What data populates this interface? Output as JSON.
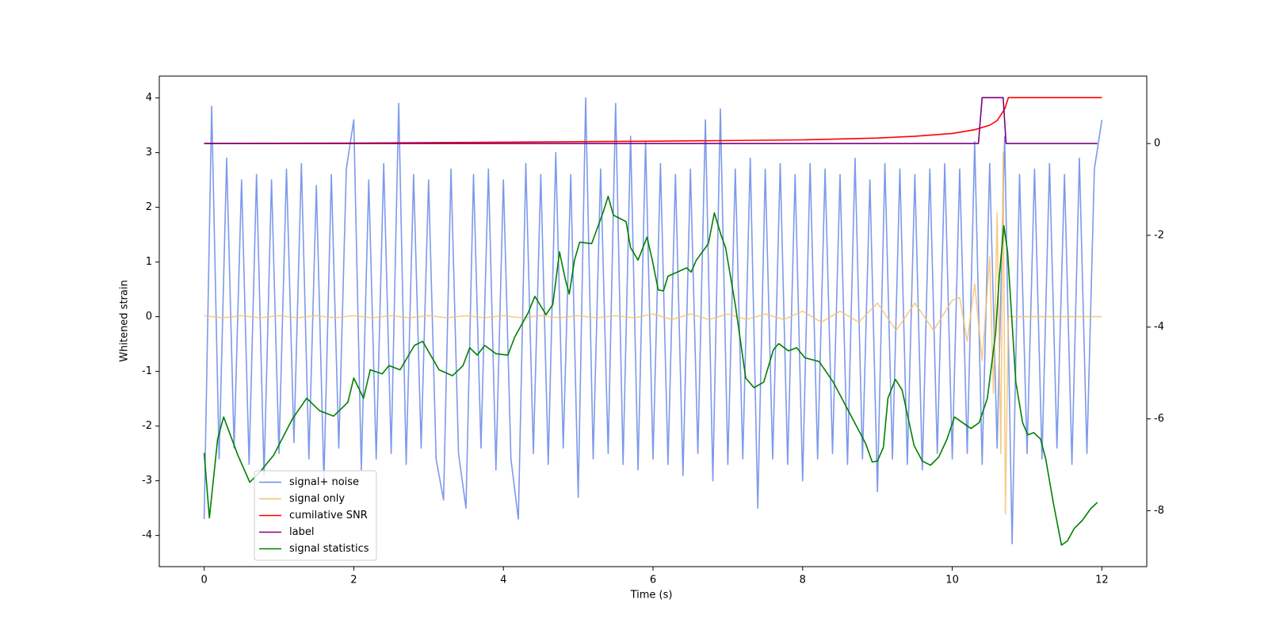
{
  "chart_data": {
    "type": "line",
    "xlabel": "Time (s)",
    "ylabel": "Whitened strain",
    "xlim": [
      -0.6,
      12.6
    ],
    "xticks": [
      0,
      2,
      4,
      6,
      8,
      10,
      12
    ],
    "ylim": [
      -4.57,
      4.4
    ],
    "yticks": [
      -4,
      -3,
      -2,
      -1,
      0,
      1,
      2,
      3,
      4
    ],
    "y2lim": [
      -9.22,
      1.47
    ],
    "y2ticks": [
      -8,
      -6,
      -4,
      -2,
      0
    ],
    "legend": "lower left",
    "series": [
      {
        "name": "signal+ noise",
        "color": "#6f8ee8",
        "axis": "y",
        "x": [
          0,
          0.1,
          0.2,
          0.3,
          0.4,
          0.5,
          0.6,
          0.7,
          0.8,
          0.9,
          1,
          1.1,
          1.2,
          1.3,
          1.4,
          1.5,
          1.6,
          1.7,
          1.8,
          1.9,
          2,
          2.1,
          2.2,
          2.3,
          2.4,
          2.5,
          2.6,
          2.7,
          2.8,
          2.9,
          3,
          3.1,
          3.2,
          3.3,
          3.4,
          3.5,
          3.6,
          3.7,
          3.8,
          3.9,
          4,
          4.1,
          4.2,
          4.3,
          4.4,
          4.5,
          4.6,
          4.7,
          4.8,
          4.9,
          5,
          5.1,
          5.2,
          5.3,
          5.4,
          5.5,
          5.6,
          5.7,
          5.8,
          5.9,
          6,
          6.1,
          6.2,
          6.3,
          6.4,
          6.5,
          6.6,
          6.7,
          6.8,
          6.9,
          7,
          7.1,
          7.2,
          7.3,
          7.4,
          7.5,
          7.6,
          7.7,
          7.8,
          7.9,
          8,
          8.1,
          8.2,
          8.3,
          8.4,
          8.5,
          8.6,
          8.7,
          8.8,
          8.9,
          9,
          9.1,
          9.2,
          9.3,
          9.4,
          9.5,
          9.6,
          9.7,
          9.8,
          9.9,
          10,
          10.1,
          10.2,
          10.3,
          10.4,
          10.5,
          10.6,
          10.7,
          10.8,
          10.9,
          11,
          11.1,
          11.2,
          11.3,
          11.4,
          11.5,
          11.6,
          11.7,
          11.8,
          11.9,
          12
        ],
        "values": [
          -3.7,
          3.85,
          -2.6,
          2.9,
          -2.4,
          2.5,
          -2.7,
          2.6,
          -2.9,
          2.5,
          -2.5,
          2.7,
          -2.3,
          2.8,
          -2.6,
          2.4,
          -3.0,
          2.6,
          -2.4,
          2.7,
          3.6,
          -2.8,
          2.5,
          -2.6,
          2.8,
          -2.5,
          3.9,
          -2.7,
          2.6,
          -2.4,
          2.5,
          -2.6,
          -3.35,
          2.7,
          -2.5,
          -3.5,
          2.6,
          -2.4,
          2.7,
          -2.8,
          2.5,
          -2.6,
          -3.7,
          2.8,
          -2.5,
          2.6,
          -2.7,
          3.0,
          -2.4,
          2.6,
          -3.3,
          4.0,
          -2.6,
          2.7,
          -2.5,
          3.9,
          -2.7,
          3.3,
          -2.8,
          3.2,
          -2.6,
          2.8,
          -2.7,
          2.6,
          -2.9,
          2.7,
          -2.5,
          3.6,
          -3.0,
          3.8,
          -2.7,
          2.7,
          -2.6,
          2.9,
          -3.5,
          2.7,
          -2.6,
          2.8,
          -2.7,
          2.6,
          -3.0,
          2.8,
          -2.6,
          2.7,
          -2.5,
          2.6,
          -2.7,
          2.9,
          -2.6,
          2.5,
          -3.2,
          2.8,
          -2.6,
          2.7,
          -2.7,
          2.6,
          -2.8,
          2.7,
          -2.5,
          2.8,
          -2.6,
          2.7,
          -2.5,
          3.2,
          -2.7,
          2.8,
          -2.4,
          3.3,
          -4.15,
          2.6,
          -2.5,
          2.7,
          -2.6,
          2.8,
          -2.4,
          2.6,
          -2.7,
          2.9,
          -2.5,
          2.7,
          3.6
        ]
      },
      {
        "name": "signal only",
        "color": "#f5c06a",
        "axis": "y",
        "x": [
          0,
          0.25,
          0.5,
          0.75,
          1,
          1.25,
          1.5,
          1.75,
          2,
          2.25,
          2.5,
          2.75,
          3,
          3.25,
          3.5,
          3.75,
          4,
          4.25,
          4.5,
          4.75,
          5,
          5.25,
          5.5,
          5.75,
          6,
          6.25,
          6.5,
          6.75,
          7,
          7.25,
          7.5,
          7.75,
          8,
          8.25,
          8.5,
          8.75,
          9,
          9.25,
          9.5,
          9.75,
          10,
          10.1,
          10.2,
          10.3,
          10.4,
          10.5,
          10.55,
          10.6,
          10.65,
          10.68,
          10.71,
          10.75,
          12
        ],
        "values": [
          0.02,
          -0.02,
          0.02,
          -0.02,
          0.02,
          -0.02,
          0.02,
          -0.02,
          0.02,
          -0.02,
          0.02,
          -0.02,
          0.02,
          -0.02,
          0.02,
          -0.02,
          0.02,
          -0.02,
          0.02,
          -0.02,
          0.02,
          -0.02,
          0.02,
          -0.02,
          0.05,
          -0.05,
          0.05,
          -0.05,
          0.05,
          -0.05,
          0.05,
          -0.05,
          0.1,
          -0.1,
          0.1,
          -0.1,
          0.25,
          -0.25,
          0.25,
          -0.25,
          0.3,
          0.35,
          -0.45,
          0.6,
          -0.8,
          1.1,
          -1.4,
          1.9,
          -2.5,
          3.0,
          -3.6,
          0,
          0
        ]
      },
      {
        "name": "cumilative SNR",
        "color": "#ff0000",
        "axis": "y2",
        "x": [
          0,
          2,
          4,
          6,
          8,
          9,
          9.5,
          10,
          10.3,
          10.5,
          10.6,
          10.7,
          10.75,
          12
        ],
        "values": [
          0,
          0.01,
          0.03,
          0.05,
          0.08,
          0.12,
          0.16,
          0.22,
          0.3,
          0.4,
          0.5,
          0.75,
          1,
          1
        ]
      },
      {
        "name": "label",
        "color": "#800080",
        "axis": "y2",
        "x": [
          0,
          10.35,
          10.4,
          10.68,
          10.72,
          11.94
        ],
        "values": [
          0,
          0,
          1,
          1,
          0,
          0
        ]
      },
      {
        "name": "signal statistics",
        "color": "#008000",
        "axis": "y2",
        "x": [
          0,
          0.07,
          0.18,
          0.26,
          0.45,
          0.61,
          0.75,
          0.93,
          1.18,
          1.37,
          1.54,
          1.73,
          1.92,
          2.0,
          2.13,
          2.22,
          2.38,
          2.47,
          2.62,
          2.81,
          2.92,
          3.14,
          3.32,
          3.46,
          3.55,
          3.65,
          3.75,
          3.9,
          4.06,
          4.15,
          4.33,
          4.42,
          4.57,
          4.66,
          4.75,
          4.83,
          4.88,
          4.95,
          5.02,
          5.18,
          5.33,
          5.4,
          5.47,
          5.64,
          5.7,
          5.8,
          5.92,
          5.99,
          6.07,
          6.14,
          6.2,
          6.45,
          6.51,
          6.58,
          6.74,
          6.82,
          6.91,
          6.97,
          7.1,
          7.24,
          7.35,
          7.48,
          7.61,
          7.68,
          7.81,
          7.92,
          8.03,
          8.22,
          8.41,
          8.62,
          8.84,
          8.93,
          9.0,
          9.08,
          9.14,
          9.24,
          9.33,
          9.49,
          9.6,
          9.71,
          9.82,
          9.93,
          10.03,
          10.25,
          10.36,
          10.47,
          10.58,
          10.63,
          10.69,
          10.74,
          10.85,
          10.94,
          11.01,
          11.09,
          11.18,
          11.25,
          11.35,
          11.46,
          11.54,
          11.63,
          11.74,
          11.85,
          11.94
        ],
        "values": [
          -6.74,
          -8.16,
          -6.44,
          -5.96,
          -6.79,
          -7.38,
          -7.15,
          -6.79,
          -6.0,
          -5.55,
          -5.82,
          -5.94,
          -5.64,
          -5.11,
          -5.55,
          -4.93,
          -5.02,
          -4.84,
          -4.93,
          -4.4,
          -4.31,
          -4.93,
          -5.06,
          -4.84,
          -4.45,
          -4.61,
          -4.4,
          -4.58,
          -4.61,
          -4.22,
          -3.69,
          -3.33,
          -3.73,
          -3.51,
          -2.36,
          -2.98,
          -3.28,
          -2.54,
          -2.15,
          -2.18,
          -1.51,
          -1.15,
          -1.56,
          -1.7,
          -2.27,
          -2.54,
          -2.04,
          -2.54,
          -3.19,
          -3.21,
          -2.89,
          -2.71,
          -2.8,
          -2.54,
          -2.18,
          -1.51,
          -2.0,
          -2.27,
          -3.51,
          -5.11,
          -5.32,
          -5.2,
          -4.49,
          -4.36,
          -4.52,
          -4.45,
          -4.67,
          -4.75,
          -5.2,
          -5.85,
          -6.53,
          -6.94,
          -6.92,
          -6.62,
          -5.55,
          -5.14,
          -5.37,
          -6.58,
          -6.92,
          -7.01,
          -6.83,
          -6.44,
          -5.96,
          -6.21,
          -6.08,
          -5.55,
          -4.13,
          -2.89,
          -1.79,
          -2.36,
          -5.2,
          -6.08,
          -6.35,
          -6.3,
          -6.44,
          -6.88,
          -7.82,
          -8.75,
          -8.66,
          -8.39,
          -8.21,
          -7.96,
          -7.82
        ]
      }
    ]
  }
}
